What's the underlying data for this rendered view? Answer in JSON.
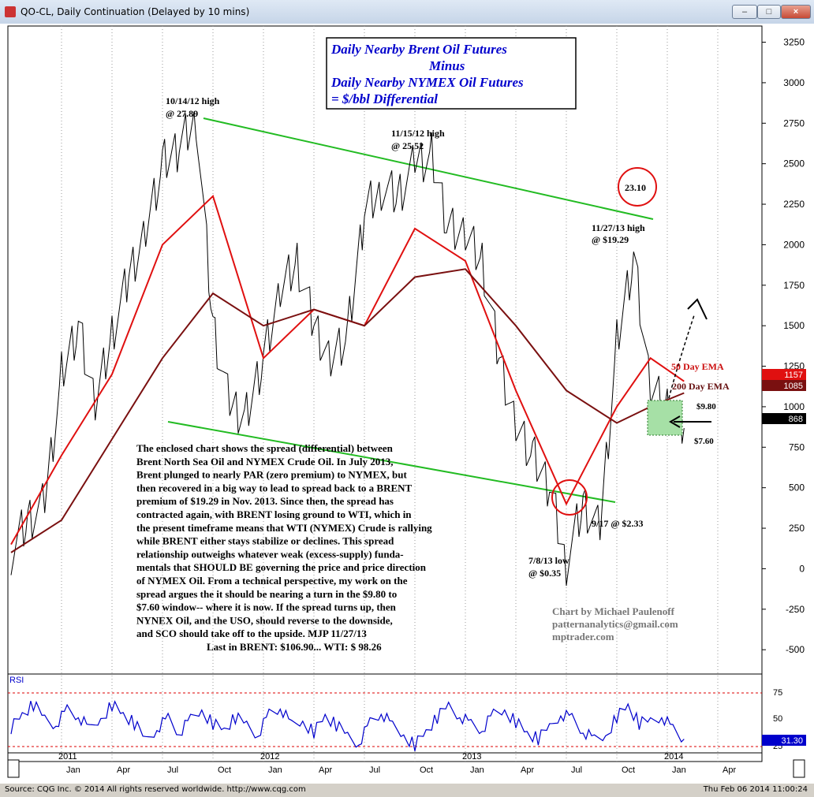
{
  "window": {
    "title": "QO-CL, Daily Continuation (Delayed by 10 mins)",
    "minimize": "–",
    "maximize": "□",
    "close": "×"
  },
  "status": {
    "left": "Source: CQG Inc. © 2014 All rights reserved worldwide. http://www.cqg.com",
    "right": "Thu Feb 06 2014 11:00:24"
  },
  "title_box": {
    "line1": "Daily Nearby Brent Oil Futures",
    "line2": "Minus",
    "line3": "Daily Nearby NYMEX Oil Futures",
    "line4": "= $/bbl Differential"
  },
  "annotations": {
    "high_2012_oct_l1": "10/14/12 high",
    "high_2012_oct_l2": "@ 27.89",
    "high_2012_nov_l1": "11/15/12 high",
    "high_2012_nov_l2": "@ 25.52",
    "high_2013_nov_l1": "11/27/13 high",
    "high_2013_nov_l2": "@ $19.29",
    "circle_value": "23.10",
    "low_2013_jul_l1": "7/8/13 low",
    "low_2013_jul_l2": "@ $0.35",
    "low_2013_sep": "9/17 @ $2.33",
    "ema50": "50 Day EMA",
    "ema200": "200 Day EMA",
    "window_top": "$9.80",
    "window_bottom": "$7.60"
  },
  "commentary": [
    "The enclosed chart shows the spread (differential) between",
    "Brent North Sea Oil and NYMEX Crude Oil. In July 2013,",
    "Brent plunged to nearly PAR (zero premium) to NYMEX, but",
    "then recovered in a big way to lead to spread back to a BRENT",
    "premium of $19.29 in Nov. 2013. Since then, the spread has",
    "contracted again, with BRENT losing ground to WTI, which in",
    "the present timeframe means that WTI (NYMEX) Crude is rallying",
    "while BRENT either stays stabilize or declines. This spread",
    "relationship outweighs whatever weak (excess-supply) funda-",
    "mentals that SHOULD BE governing the price and price direction",
    "of NYMEX Oil. From a technical perspective, my work on the",
    "spread argues the it should be nearing a turn in the $9.80 to",
    "$7.60 window-- where it is now. If the spread turns up, then",
    "NYNEX Oil, and the USO, should reverse to the downside,",
    "and SCO should take off to the upside.  MJP 11/27/13",
    "Last in BRENT: $106.90... WTI: $ 98.26"
  ],
  "credit": {
    "line1": "Chart by Michael Paulenoff",
    "line2": "patternanalytics@gmail.com",
    "line3": "mptrader.com"
  },
  "rsi": {
    "label": "RSI",
    "last": "31.30",
    "ticks": [
      "75",
      "50",
      "25"
    ]
  },
  "price_badges": {
    "ema50": "1157",
    "ema200": "1085",
    "last": "868"
  },
  "colors": {
    "price": "#000000",
    "ema50": "#e01010",
    "ema200": "#7a1010",
    "trendline": "#22bb22",
    "title_text": "#0000cc",
    "rsi": "#0000cc",
    "rsi_levels": "#dd0000",
    "window_fill": "#a6e0a6"
  },
  "chart_data": {
    "type": "line",
    "title": "Daily Nearby Brent Oil Futures Minus Daily Nearby NYMEX Oil Futures = $/bbl Differential",
    "units_note": "axis in hundredths of $/bbl",
    "ylim": [
      -650,
      3350
    ],
    "yticks": [
      "3250",
      "3000",
      "2750",
      "2500",
      "2250",
      "2000",
      "1750",
      "1500",
      "1250",
      "1000",
      "750",
      "500",
      "250",
      "0",
      "-250",
      "-500"
    ],
    "x_month_labels": [
      "Jan",
      "Apr",
      "Jul",
      "Oct",
      "Jan",
      "Apr",
      "Jul",
      "Oct",
      "Jan",
      "Apr",
      "Jul",
      "Oct",
      "Jan",
      "Apr"
    ],
    "x_year_labels": [
      "2011",
      "2012",
      "2013",
      "2014"
    ],
    "series": [
      {
        "name": "QO-CL",
        "x": [
          "2010-10",
          "2010-11",
          "2010-12",
          "2011-01",
          "2011-02",
          "2011-03",
          "2011-04",
          "2011-05",
          "2011-06",
          "2011-07",
          "2011-08",
          "2011-09",
          "2011-10",
          "2011-11",
          "2011-12",
          "2012-01",
          "2012-02",
          "2012-03",
          "2012-04",
          "2012-05",
          "2012-06",
          "2012-07",
          "2012-08",
          "2012-09",
          "2012-10",
          "2012-11",
          "2012-12",
          "2013-01",
          "2013-02",
          "2013-03",
          "2013-04",
          "2013-05",
          "2013-06",
          "2013-07",
          "2013-08",
          "2013-09",
          "2013-10",
          "2013-11",
          "2013-12",
          "2014-01",
          "2014-02"
        ],
        "values": [
          100,
          300,
          400,
          1200,
          1500,
          1000,
          1450,
          1800,
          2100,
          2500,
          2600,
          2789,
          1500,
          1000,
          950,
          1300,
          1700,
          1900,
          1500,
          1300,
          1450,
          2200,
          2350,
          2300,
          2500,
          2552,
          2100,
          2050,
          1900,
          1300,
          900,
          700,
          500,
          35,
          400,
          233,
          1400,
          1929,
          1100,
          1000,
          868
        ]
      },
      {
        "name": "50 Day EMA",
        "x": [
          "2010-10",
          "2011-01",
          "2011-04",
          "2011-07",
          "2011-10",
          "2012-01",
          "2012-04",
          "2012-07",
          "2012-10",
          "2013-01",
          "2013-04",
          "2013-07",
          "2013-10",
          "2013-12",
          "2014-02"
        ],
        "values": [
          150,
          700,
          1200,
          2000,
          2300,
          1300,
          1600,
          1500,
          2100,
          1900,
          1100,
          400,
          1000,
          1300,
          1157
        ]
      },
      {
        "name": "200 Day EMA",
        "x": [
          "2010-10",
          "2011-01",
          "2011-04",
          "2011-07",
          "2011-10",
          "2012-01",
          "2012-04",
          "2012-07",
          "2012-10",
          "2013-01",
          "2013-04",
          "2013-07",
          "2013-10",
          "2013-12",
          "2014-02"
        ],
        "values": [
          100,
          300,
          800,
          1300,
          1700,
          1500,
          1600,
          1500,
          1800,
          1850,
          1500,
          1100,
          900,
          1000,
          1085
        ]
      }
    ],
    "rsi_series": {
      "name": "RSI",
      "ylim": [
        15,
        95
      ],
      "levels": [
        75,
        25
      ],
      "values": [
        45,
        60,
        70,
        55,
        50,
        65,
        58,
        40,
        55,
        72,
        60,
        48,
        30,
        45,
        55,
        38,
        52,
        65,
        50,
        42,
        55,
        48,
        38,
        60,
        68,
        45,
        52,
        40,
        58,
        46,
        35,
        28,
        50,
        62,
        44,
        36,
        25,
        40,
        55,
        70,
        60,
        48,
        42,
        58,
        65,
        52,
        38,
        30,
        45,
        62,
        55,
        40,
        28,
        35,
        58,
        70,
        48,
        52,
        60,
        42,
        31
      ]
    }
  }
}
